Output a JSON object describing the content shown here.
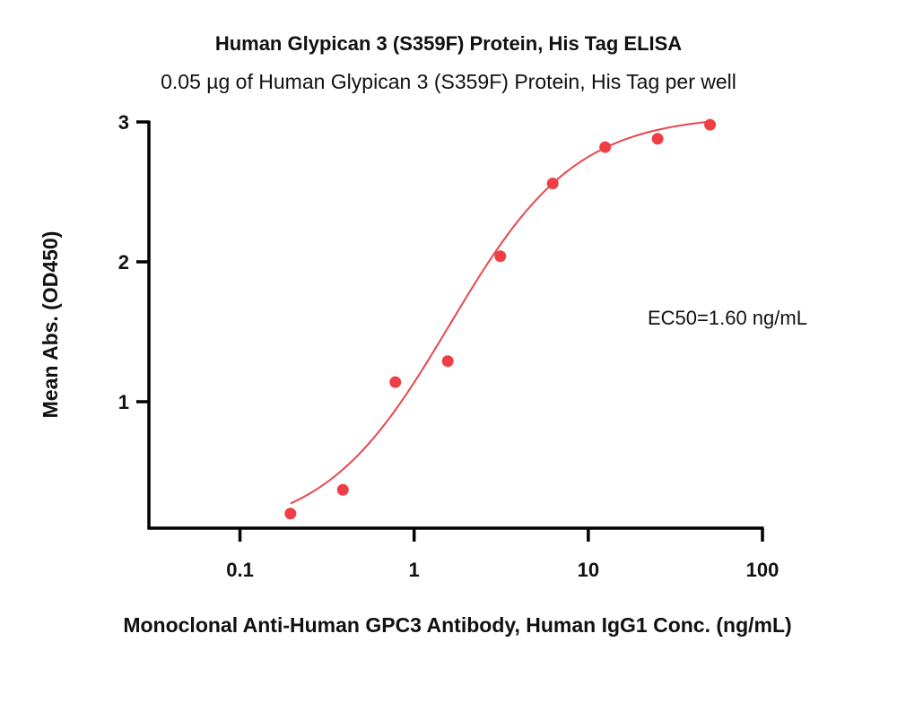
{
  "chart_data": {
    "type": "scatter",
    "title": "Human Glypican 3 (S359F) Protein, His Tag ELISA",
    "subtitle": "0.05 µg of Human Glypican 3 (S359F) Protein, His Tag per well",
    "xlabel": "Monoclonal Anti-Human GPC3 Antibody, Human IgG1 Conc. (ng/mL)",
    "ylabel": "Mean Abs. (OD450)",
    "x_scale": "log",
    "xlim": [
      0.03,
      100
    ],
    "ylim": [
      0,
      3
    ],
    "x_ticks": [
      0.1,
      1,
      10,
      100
    ],
    "x_tick_labels": [
      "0.1",
      "1",
      "10",
      "100"
    ],
    "y_ticks": [
      1,
      2,
      3
    ],
    "y_tick_labels": [
      "1",
      "2",
      "3"
    ],
    "series": [
      {
        "x": [
          0.195,
          0.39,
          0.78,
          1.56,
          3.125,
          6.25,
          12.5,
          25,
          50
        ],
        "y": [
          0.2,
          0.37,
          1.14,
          1.29,
          2.04,
          2.56,
          2.82,
          2.88,
          2.98
        ],
        "color": "#ee3f45"
      }
    ],
    "fit": {
      "model": "4PL",
      "bottom": 0.05,
      "top": 3.05,
      "ec50": 1.6,
      "hill": 1.2,
      "x_range": [
        0.195,
        50
      ],
      "color": "#e8474c"
    },
    "annotation": "EC50=1.60 ng/mL",
    "grid": false,
    "legend": "none"
  }
}
